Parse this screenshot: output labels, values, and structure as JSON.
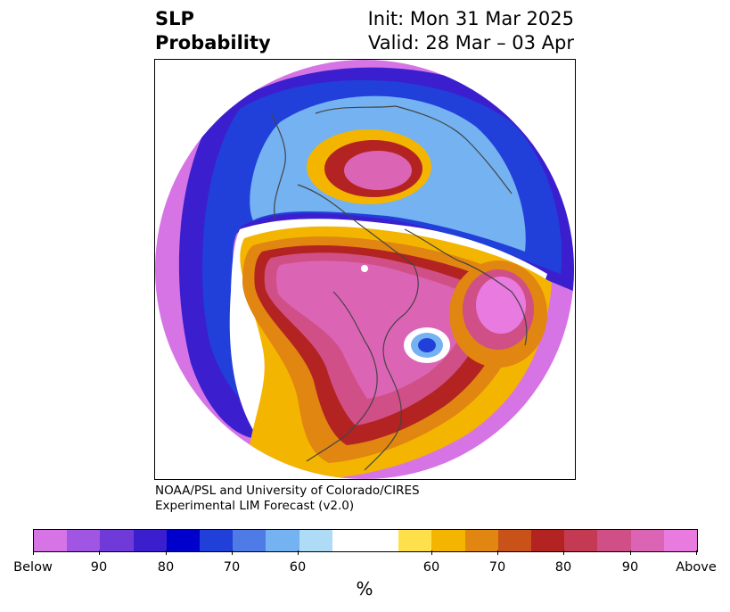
{
  "title": {
    "left_line1": "SLP",
    "left_line2": "Probability",
    "right_line1": "Init: Mon 31 Mar 2025",
    "right_line2": "Valid: 28 Mar – 03 Apr"
  },
  "credit": {
    "line1": "NOAA/PSL and University of Colorado/CIRES",
    "line2": "Experimental LIM Forecast (v2.0)"
  },
  "colorbar": {
    "unit": "%",
    "colors": [
      "#d674e6",
      "#a055e3",
      "#6f3ad8",
      "#3b1fcf",
      "#0000cd",
      "#2140d9",
      "#4f7be6",
      "#74b2f2",
      "#aedcf7",
      "#ffffff",
      "#fee04a",
      "#f4b500",
      "#e08611",
      "#c95218",
      "#b32322",
      "#c43a52",
      "#d04f86",
      "#dc64b5",
      "#e87ae0"
    ],
    "tick_labels": [
      "Below",
      "90",
      "80",
      "70",
      "60",
      "60",
      "70",
      "80",
      "90",
      "Above"
    ]
  },
  "map": {
    "projection": "north-polar-stereographic",
    "field": "sea level pressure probability",
    "colors": {
      "below_strong": "#d674e6",
      "below_mid": "#3b1fcf",
      "below_weak": "#74b2f2",
      "above_weak": "#f4b500",
      "above_mid": "#b32322",
      "above_strong": "#dc64b5",
      "coast": "#444444"
    }
  }
}
